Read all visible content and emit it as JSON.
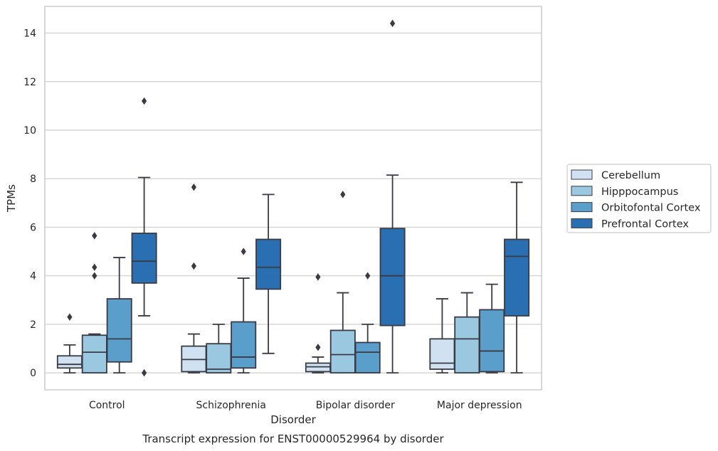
{
  "chart_data": {
    "type": "box",
    "caption": "Transcript expression for ENST00000529964 by disorder",
    "xlabel": "Disorder",
    "ylabel": "TPMs",
    "ylim": [
      -0.7,
      15.1
    ],
    "yticks": [
      0,
      2,
      4,
      6,
      8,
      10,
      12,
      14
    ],
    "grid": "horizontal",
    "legend_position": "right",
    "categories": [
      "Control",
      "Schizophrenia",
      "Bipolar disorder",
      "Major depression"
    ],
    "series": [
      {
        "name": "Cerebellum",
        "color": "#d0e1f2",
        "boxes": [
          {
            "q1": 0.2,
            "median": 0.35,
            "q3": 0.7,
            "whisker_low": 0.0,
            "whisker_high": 1.15,
            "outliers": [
              2.3
            ]
          },
          {
            "q1": 0.05,
            "median": 0.55,
            "q3": 1.1,
            "whisker_low": 0.0,
            "whisker_high": 1.6,
            "outliers": [
              4.4,
              7.65
            ]
          },
          {
            "q1": 0.05,
            "median": 0.25,
            "q3": 0.4,
            "whisker_low": 0.0,
            "whisker_high": 0.65,
            "outliers": [
              1.05,
              3.95
            ]
          },
          {
            "q1": 0.15,
            "median": 0.4,
            "q3": 1.4,
            "whisker_low": 0.0,
            "whisker_high": 3.05,
            "outliers": []
          }
        ]
      },
      {
        "name": "Hipppocampus",
        "color": "#9ac8e0",
        "boxes": [
          {
            "q1": 0.0,
            "median": 0.85,
            "q3": 1.55,
            "whisker_low": 0.0,
            "whisker_high": 1.6,
            "outliers": [
              4.0,
              4.35,
              5.65
            ]
          },
          {
            "q1": 0.0,
            "median": 0.15,
            "q3": 1.2,
            "whisker_low": 0.0,
            "whisker_high": 2.0,
            "outliers": []
          },
          {
            "q1": 0.0,
            "median": 0.75,
            "q3": 1.75,
            "whisker_low": 0.0,
            "whisker_high": 3.3,
            "outliers": [
              7.35
            ]
          },
          {
            "q1": 0.0,
            "median": 1.4,
            "q3": 2.3,
            "whisker_low": 0.0,
            "whisker_high": 3.3,
            "outliers": []
          }
        ]
      },
      {
        "name": "Orbitofontal Cortex",
        "color": "#5a9fcc",
        "boxes": [
          {
            "q1": 0.45,
            "median": 1.4,
            "q3": 3.05,
            "whisker_low": 0.0,
            "whisker_high": 4.75,
            "outliers": []
          },
          {
            "q1": 0.2,
            "median": 0.65,
            "q3": 2.1,
            "whisker_low": 0.0,
            "whisker_high": 3.9,
            "outliers": [
              5.0
            ]
          },
          {
            "q1": 0.0,
            "median": 0.85,
            "q3": 1.25,
            "whisker_low": 0.0,
            "whisker_high": 2.0,
            "outliers": [
              4.0
            ]
          },
          {
            "q1": 0.05,
            "median": 0.9,
            "q3": 2.6,
            "whisker_low": 0.0,
            "whisker_high": 3.65,
            "outliers": []
          }
        ]
      },
      {
        "name": "Prefrontal Cortex",
        "color": "#2a6fb1",
        "boxes": [
          {
            "q1": 3.7,
            "median": 4.6,
            "q3": 5.75,
            "whisker_low": 2.35,
            "whisker_high": 8.05,
            "outliers": [
              0.0,
              11.2
            ]
          },
          {
            "q1": 3.45,
            "median": 4.35,
            "q3": 5.5,
            "whisker_low": 0.8,
            "whisker_high": 7.35,
            "outliers": []
          },
          {
            "q1": 1.95,
            "median": 4.0,
            "q3": 5.95,
            "whisker_low": 0.0,
            "whisker_high": 8.15,
            "outliers": [
              14.4
            ]
          },
          {
            "q1": 2.35,
            "median": 4.8,
            "q3": 5.5,
            "whisker_low": 0.0,
            "whisker_high": 7.85,
            "outliers": []
          }
        ]
      }
    ]
  }
}
